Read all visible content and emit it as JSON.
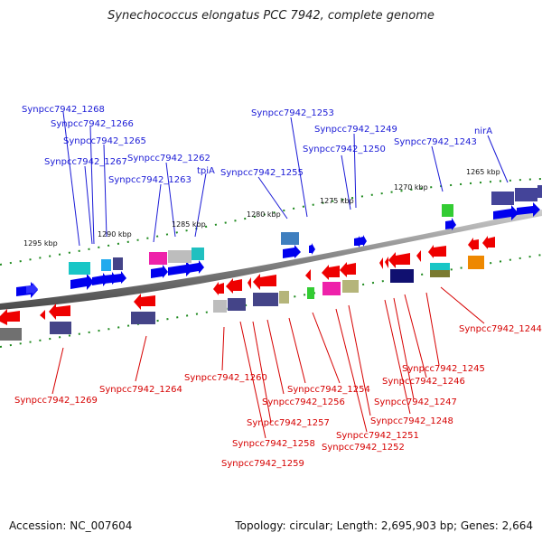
{
  "title": "Synechococcus elongatus PCC 7942, complete genome",
  "footer": {
    "accession": "Accession: NC_007604",
    "topology": "Topology: circular; Length: 2,695,903 bp; Genes: 2,664"
  },
  "ticks": [
    {
      "text": "1295 kbp"
    },
    {
      "text": "1290 kbp"
    },
    {
      "text": "1285 kbp"
    },
    {
      "text": "1280 kbp"
    },
    {
      "text": "1275 kbp"
    },
    {
      "text": "1270 kbp"
    },
    {
      "text": "1265 kbp"
    }
  ],
  "labels_top": [
    {
      "text": "Synpcc7942_1268"
    },
    {
      "text": "Synpcc7942_1266"
    },
    {
      "text": "Synpcc7942_1265"
    },
    {
      "text": "Synpcc7942_1267"
    },
    {
      "text": "Synpcc7942_1263"
    },
    {
      "text": "Synpcc7942_1262"
    },
    {
      "text": "tpiA"
    },
    {
      "text": "Synpcc7942_1255"
    },
    {
      "text": "Synpcc7942_1253"
    },
    {
      "text": "Synpcc7942_1249"
    },
    {
      "text": "Synpcc7942_1250"
    },
    {
      "text": "Synpcc7942_1243"
    },
    {
      "text": "nirA"
    }
  ],
  "labels_bottom": [
    {
      "text": "Synpcc7942_1269"
    },
    {
      "text": "Synpcc7942_1264"
    },
    {
      "text": "Synpcc7942_1260"
    },
    {
      "text": "Synpcc7942_1254"
    },
    {
      "text": "Synpcc7942_1256"
    },
    {
      "text": "Synpcc7942_1257"
    },
    {
      "text": "Synpcc7942_1258"
    },
    {
      "text": "Synpcc7942_1259"
    },
    {
      "text": "Synpcc7942_1251"
    },
    {
      "text": "Synpcc7942_1252"
    },
    {
      "text": "Synpcc7942_1248"
    },
    {
      "text": "Synpcc7942_1247"
    },
    {
      "text": "Synpcc7942_1246"
    },
    {
      "text": "Synpcc7942_1245"
    },
    {
      "text": "Synpcc7942_1244"
    }
  ],
  "colors": {
    "forward": "#0000ee",
    "reverse": "#ee0000",
    "label_top": "#1a1ad6",
    "label_bottom": "#d60000",
    "backbone": "#8c8c8c",
    "tick_mark": "#1f8a1f"
  }
}
